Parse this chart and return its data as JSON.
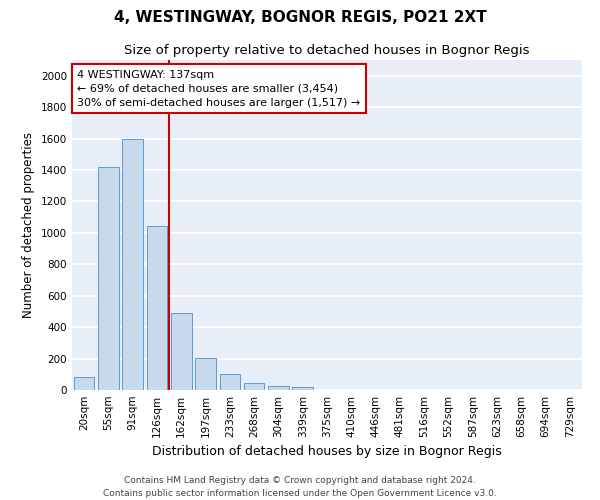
{
  "title": "4, WESTINGWAY, BOGNOR REGIS, PO21 2XT",
  "subtitle": "Size of property relative to detached houses in Bognor Regis",
  "xlabel": "Distribution of detached houses by size in Bognor Regis",
  "ylabel": "Number of detached properties",
  "categories": [
    "20sqm",
    "55sqm",
    "91sqm",
    "126sqm",
    "162sqm",
    "197sqm",
    "233sqm",
    "268sqm",
    "304sqm",
    "339sqm",
    "375sqm",
    "410sqm",
    "446sqm",
    "481sqm",
    "516sqm",
    "552sqm",
    "587sqm",
    "623sqm",
    "658sqm",
    "694sqm",
    "729sqm"
  ],
  "values": [
    85,
    1420,
    1600,
    1045,
    490,
    205,
    105,
    42,
    28,
    20,
    0,
    0,
    0,
    0,
    0,
    0,
    0,
    0,
    0,
    0,
    0
  ],
  "bar_color": "#c9d9ec",
  "bar_edge_color": "#5b9bd5",
  "vline_color": "#cc0000",
  "vline_x_index": 3,
  "annotation_line1": "4 WESTINGWAY: 137sqm",
  "annotation_line2": "← 69% of detached houses are smaller (3,454)",
  "annotation_line3": "30% of semi-detached houses are larger (1,517) →",
  "annotation_box_facecolor": "#ffffff",
  "annotation_box_edgecolor": "#cc0000",
  "ylim": [
    0,
    2100
  ],
  "yticks": [
    0,
    200,
    400,
    600,
    800,
    1000,
    1200,
    1400,
    1600,
    1800,
    2000
  ],
  "plot_bg_color": "#e8eef7",
  "fig_bg_color": "#ffffff",
  "grid_color": "#ffffff",
  "title_fontsize": 11,
  "subtitle_fontsize": 9.5,
  "xlabel_fontsize": 9,
  "ylabel_fontsize": 8.5,
  "tick_fontsize": 7.5,
  "annotation_fontsize": 8,
  "footer_fontsize": 6.5,
  "footer_line1": "Contains HM Land Registry data © Crown copyright and database right 2024.",
  "footer_line2": "Contains public sector information licensed under the Open Government Licence v3.0."
}
